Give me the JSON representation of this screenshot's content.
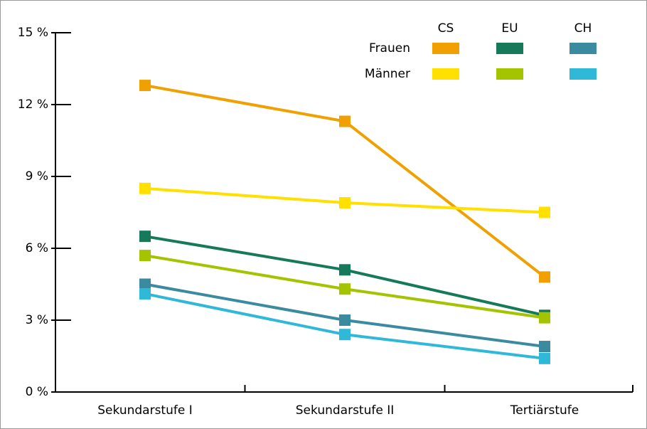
{
  "chart_data": {
    "type": "line",
    "categories": [
      "Sekundarstufe I",
      "Sekundarstufe II",
      "Tertiärstufe"
    ],
    "legend_columns": [
      "CS",
      "EU",
      "CH"
    ],
    "legend_rows": [
      "Frauen",
      "Männer"
    ],
    "series": [
      {
        "color": "#f0a000",
        "values": [
          12.8,
          11.3,
          4.8
        ]
      },
      {
        "color": "#167a5a",
        "values": [
          6.5,
          5.1,
          3.2
        ]
      },
      {
        "color": "#3a8aa0",
        "values": [
          4.5,
          3.0,
          1.9
        ]
      },
      {
        "color": "#ffe000",
        "values": [
          8.5,
          7.9,
          7.5
        ]
      },
      {
        "color": "#a4c400",
        "values": [
          5.7,
          4.3,
          3.1
        ]
      },
      {
        "color": "#30b8d8",
        "values": [
          4.1,
          2.4,
          1.4
        ]
      }
    ],
    "ylim": [
      0,
      15
    ],
    "yticks": [
      {
        "value": 0,
        "label": "0 %"
      },
      {
        "value": 3,
        "label": "3 %"
      },
      {
        "value": 6,
        "label": "6 %"
      },
      {
        "value": 9,
        "label": "9 %"
      },
      {
        "value": 12,
        "label": "12 %"
      },
      {
        "value": 15,
        "label": "15 %"
      }
    ]
  }
}
